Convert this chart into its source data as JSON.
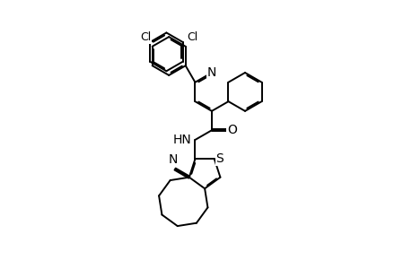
{
  "background_color": "#ffffff",
  "line_color": "#000000",
  "line_width": 1.4,
  "font_size": 9.5,
  "fig_width": 4.6,
  "fig_height": 3.0,
  "dpi": 100,
  "xlim": [
    0,
    10
  ],
  "ylim": [
    0,
    10
  ]
}
